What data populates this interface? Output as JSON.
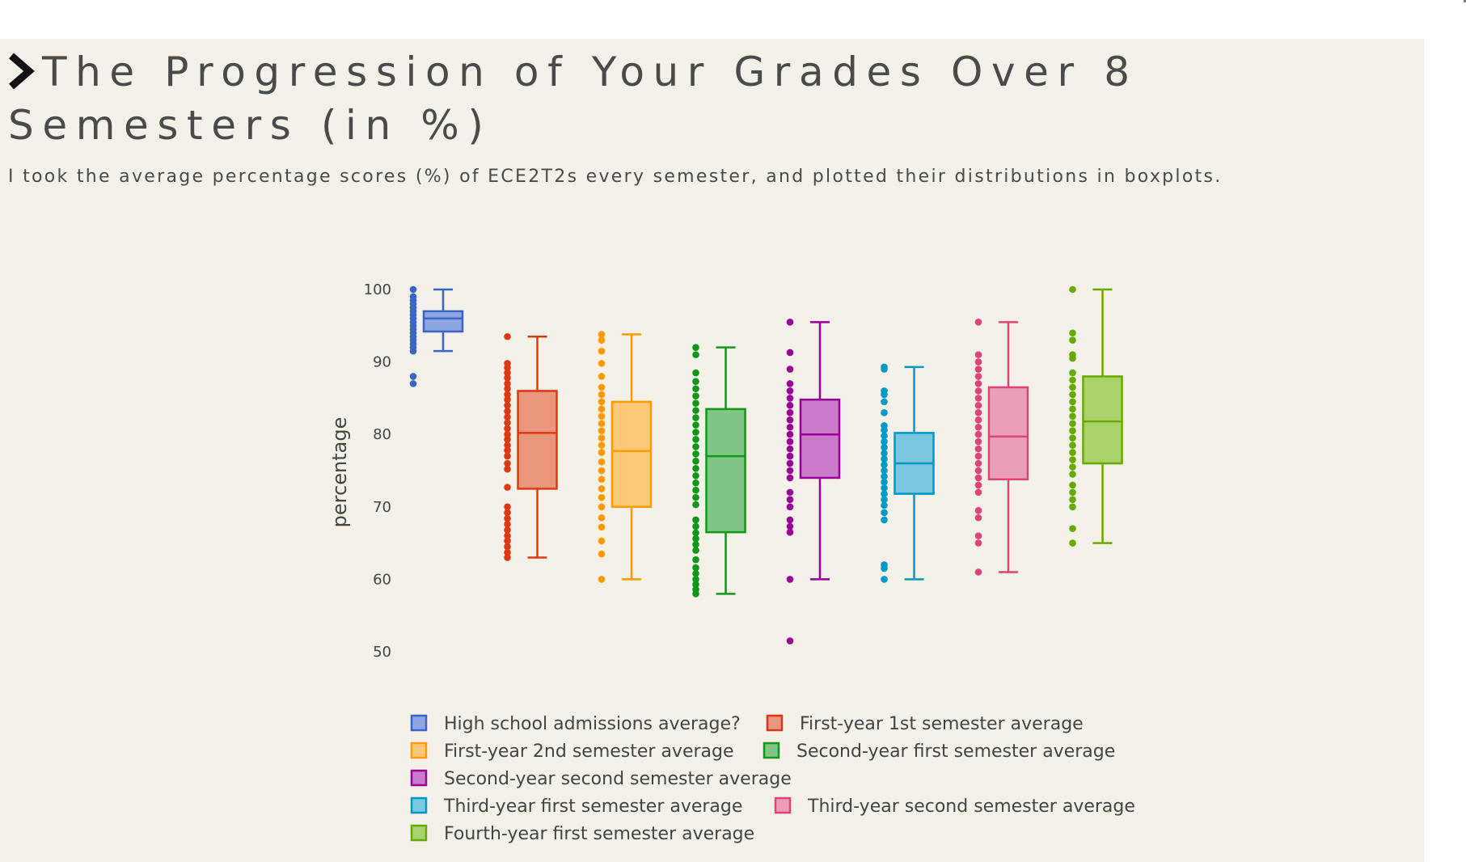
{
  "page": {
    "title": "The Progression of Your Grades Over 8 Semesters (in %)",
    "subtitle": "I took the average percentage scores (%) of ECE2T2s every semester, and plotted their distributions in boxplots.",
    "title_icon": "chevron-right-icon"
  },
  "chart_data": {
    "type": "box",
    "ylabel": "percentage",
    "xlabel": "",
    "ylim": [
      47,
      102
    ],
    "yticks": [
      "50",
      "60",
      "70",
      "80",
      "90",
      "100"
    ],
    "grid": false,
    "legend_position": "bottom",
    "series": [
      {
        "name": "High school admissions average?",
        "color": "#3b64c8",
        "fill": "#8ea6e0",
        "min": 91.5,
        "q1": 94.2,
        "median": 96,
        "q3": 97,
        "max": 100,
        "points": [
          87,
          88,
          91.5,
          92,
          92.5,
          93,
          93.5,
          94,
          94.5,
          95,
          95.5,
          96,
          96.5,
          97,
          97.5,
          98,
          98.5,
          99,
          100
        ]
      },
      {
        "name": "First-year 1st semester average",
        "color": "#dc3912",
        "fill": "#e8967e",
        "min": 63,
        "q1": 72.5,
        "median": 80.2,
        "q3": 86,
        "max": 93.5,
        "points": [
          63,
          63.7,
          64.5,
          65.3,
          66,
          66.8,
          67.6,
          68.4,
          69.2,
          70,
          72.7,
          75.2,
          76,
          77,
          77.8,
          78.5,
          79.3,
          80,
          80.8,
          81.6,
          82.4,
          83.2,
          84,
          84.8,
          85.5,
          86.3,
          87,
          87.8,
          88.5,
          89.2,
          89.8,
          93.5
        ]
      },
      {
        "name": "First-year 2nd semester average",
        "color": "#ff9900",
        "fill": "#fbc878",
        "min": 60,
        "q1": 70,
        "median": 77.7,
        "q3": 84.5,
        "max": 93.8,
        "points": [
          60,
          63.5,
          65.3,
          67.2,
          68.5,
          70,
          71.3,
          72.5,
          73.8,
          75,
          76.2,
          77.5,
          78.5,
          79.5,
          80.5,
          81.5,
          82.5,
          83.5,
          84.5,
          85.5,
          86.5,
          88,
          89.8,
          91.5,
          93,
          93.8
        ]
      },
      {
        "name": "Second-year first semester average",
        "color": "#109618",
        "fill": "#80c583",
        "min": 58,
        "q1": 66.5,
        "median": 77,
        "q3": 83.5,
        "max": 92,
        "points": [
          58,
          58.6,
          59.3,
          60,
          60.8,
          61.6,
          62.7,
          64,
          64.8,
          65.6,
          66.4,
          67.3,
          68.2,
          70.3,
          71.3,
          72.3,
          73.3,
          74.3,
          75.3,
          76.3,
          77.3,
          78.3,
          79.3,
          80.3,
          81.3,
          82.3,
          83.3,
          84.3,
          85.3,
          86.3,
          87.3,
          88.5,
          91,
          92
        ]
      },
      {
        "name": "Second-year second semester average",
        "color": "#990099",
        "fill": "#c97bc9",
        "min": 60,
        "q1": 74,
        "median": 80,
        "q3": 84.8,
        "max": 95.5,
        "points": [
          51.5,
          60,
          66.5,
          67.3,
          68.2,
          70,
          71,
          72,
          74,
          75,
          76,
          77,
          78,
          79,
          80,
          81,
          82,
          83,
          84,
          85,
          86,
          87,
          89,
          91.3,
          95.5
        ]
      },
      {
        "name": "Third-year first semester average",
        "color": "#0099c6",
        "fill": "#7ac8df",
        "min": 60,
        "q1": 71.8,
        "median": 76,
        "q3": 80.2,
        "max": 89.3,
        "points": [
          60,
          61.5,
          62,
          68.2,
          69.2,
          70.2,
          71,
          71.8,
          72.6,
          73.4,
          74.2,
          75,
          75.8,
          76.6,
          77.4,
          78.2,
          79,
          79.8,
          80.6,
          81.2,
          83,
          84.5,
          85.5,
          86,
          89,
          89.3
        ]
      },
      {
        "name": "Third-year second semester average",
        "color": "#dd4477",
        "fill": "#eb9fb7",
        "min": 61,
        "q1": 73.8,
        "median": 79.7,
        "q3": 86.5,
        "max": 95.5,
        "points": [
          61,
          65,
          66,
          68.5,
          69.5,
          72,
          73,
          74,
          75,
          76,
          77,
          78,
          79,
          80,
          81,
          82,
          83,
          84,
          85,
          86,
          87,
          88,
          89,
          90,
          91,
          95.5
        ]
      },
      {
        "name": "Fourth-year first semester average",
        "color": "#66aa00",
        "fill": "#a9d26a",
        "min": 65,
        "q1": 76,
        "median": 81.8,
        "q3": 88,
        "max": 100,
        "points": [
          65,
          67,
          70,
          71,
          72,
          73,
          74.5,
          75.5,
          76.5,
          77.5,
          78.5,
          79.5,
          80.5,
          81.5,
          82.5,
          83.5,
          84.5,
          85.5,
          86.5,
          87.5,
          88.5,
          90.5,
          91,
          93,
          94,
          100
        ]
      }
    ]
  }
}
